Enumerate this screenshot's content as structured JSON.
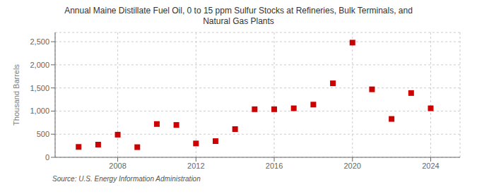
{
  "chart_data": {
    "type": "scatter",
    "title": "Annual Maine Distillate Fuel Oil, 0 to 15 ppm Sulfur Stocks at Refineries, Bulk Terminals, and\nNatural Gas Plants",
    "ylabel": "Thousand Barrels",
    "source": "Source: U.S. Energy Information Administration",
    "x": [
      2006,
      2007,
      2008,
      2009,
      2010,
      2011,
      2012,
      2013,
      2014,
      2015,
      2016,
      2017,
      2018,
      2019,
      2020,
      2021,
      2022,
      2023,
      2024
    ],
    "values": [
      225,
      275,
      490,
      220,
      720,
      700,
      300,
      350,
      610,
      1040,
      1040,
      1060,
      1140,
      1600,
      2480,
      1470,
      830,
      1390,
      1060
    ],
    "color": "#cc0000",
    "marker": "square",
    "xlim": [
      2004.8,
      2025.5
    ],
    "xticks": [
      2008,
      2012,
      2016,
      2020,
      2024
    ],
    "ylim": [
      0,
      2700
    ],
    "yticks": [
      0,
      500,
      {
        "value": 1000,
        "label": "1,000"
      },
      {
        "value": 1500,
        "label": "1,500"
      },
      {
        "value": 2000,
        "label": "2,000"
      },
      {
        "value": 2500,
        "label": "2,500"
      }
    ],
    "grid": true
  }
}
